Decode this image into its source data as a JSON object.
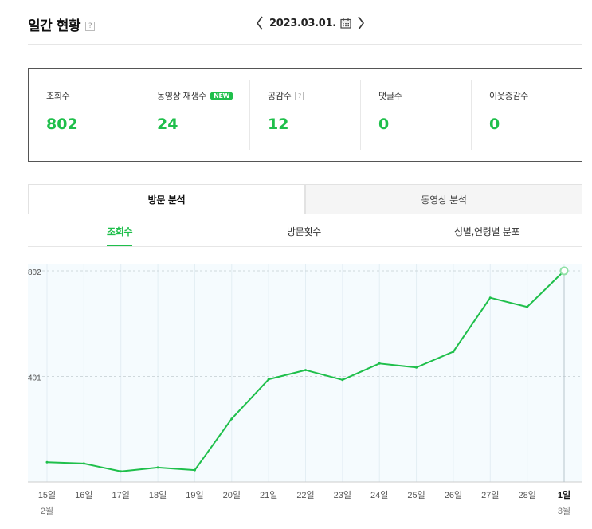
{
  "header": {
    "title": "일간 현황",
    "help": "?",
    "date": "2023.03.01."
  },
  "stats": [
    {
      "label": "조회수",
      "value": "802"
    },
    {
      "label": "동영상 재생수",
      "badge": "NEW",
      "value": "24"
    },
    {
      "label": "공감수",
      "help": "?",
      "value": "12"
    },
    {
      "label": "댓글수",
      "value": "0"
    },
    {
      "label": "이웃증감수",
      "value": "0"
    }
  ],
  "tabs": [
    "방문 분석",
    "동영상 분석"
  ],
  "subtabs": [
    "조회수",
    "방문횟수",
    "성별,연령별 분포"
  ],
  "colors": {
    "accent": "#1fbf4b"
  },
  "chart_data": {
    "type": "line",
    "categories": [
      "15일",
      "16일",
      "17일",
      "18일",
      "19일",
      "20일",
      "21일",
      "22일",
      "23일",
      "24일",
      "25일",
      "26일",
      "27일",
      "28일",
      "1일"
    ],
    "month_labels": [
      {
        "index": 0,
        "label": "2월"
      },
      {
        "index": 14,
        "label": "3월"
      }
    ],
    "values": [
      75,
      70,
      40,
      55,
      45,
      240,
      390,
      425,
      388,
      450,
      435,
      495,
      700,
      665,
      802
    ],
    "yticks": [
      802,
      401
    ],
    "ylim": [
      0,
      802
    ],
    "highlight_index": 14,
    "grid": true
  }
}
